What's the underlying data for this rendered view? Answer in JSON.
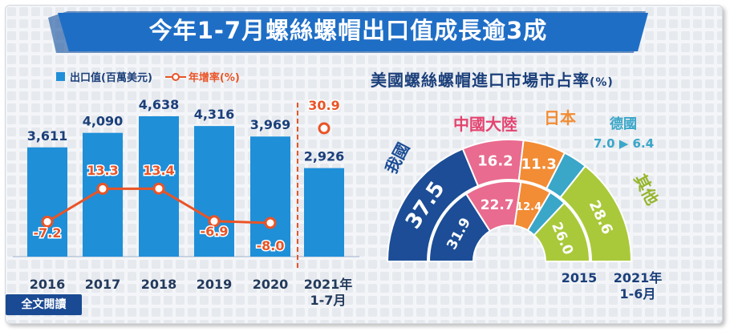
{
  "title": "今年1-7月螺絲螺帽出口值成長逾3成",
  "legend": {
    "value_label": "出口值(百萬美元)",
    "growth_label": "年增率(%)"
  },
  "read_more": "全文閱讀",
  "colors": {
    "banner": "#1f6ec6",
    "bar": "#1f8fd8",
    "growth_line": "#e95426",
    "navy": "#1b3f7a",
    "share_china": "#e96b8f",
    "share_japan": "#f28c35",
    "share_germany": "#3aa6c8",
    "share_other": "#a9c93a",
    "share_us": "#1c4d96"
  },
  "chart_data": [
    {
      "type": "bar",
      "categories": [
        "2016",
        "2017",
        "2018",
        "2019",
        "2020",
        "2021年\n1-7月"
      ],
      "series": [
        {
          "name": "出口值(百萬美元)",
          "values": [
            3611,
            4090,
            4638,
            4316,
            3969,
            2926
          ]
        },
        {
          "name": "年增率(%)",
          "type": "line",
          "values": [
            -7.2,
            13.3,
            13.4,
            -6.9,
            -8.0,
            30.9
          ]
        }
      ],
      "value_labels": [
        "3,611",
        "4,090",
        "4,638",
        "4,316",
        "3,969",
        "2,926"
      ],
      "growth_labels": [
        "-7.2",
        "13.3",
        "13.4",
        "-6.9",
        "-8.0",
        "30.9"
      ]
    },
    {
      "type": "pie",
      "title": "美國螺絲螺帽進口市場市占率",
      "unit": "(%)",
      "rings": [
        "2015",
        "2021年\n1-6月"
      ],
      "series": [
        {
          "name": "我國",
          "values": [
            31.9,
            37.5
          ]
        },
        {
          "name": "中國大陸",
          "values": [
            22.7,
            16.2
          ]
        },
        {
          "name": "日本",
          "values": [
            12.4,
            11.3
          ]
        },
        {
          "name": "德國",
          "values": [
            7.0,
            6.4
          ]
        },
        {
          "name": "其他",
          "values": [
            26.0,
            28.6
          ]
        }
      ],
      "germany_note": "7.0 ▶ 6.4"
    }
  ]
}
